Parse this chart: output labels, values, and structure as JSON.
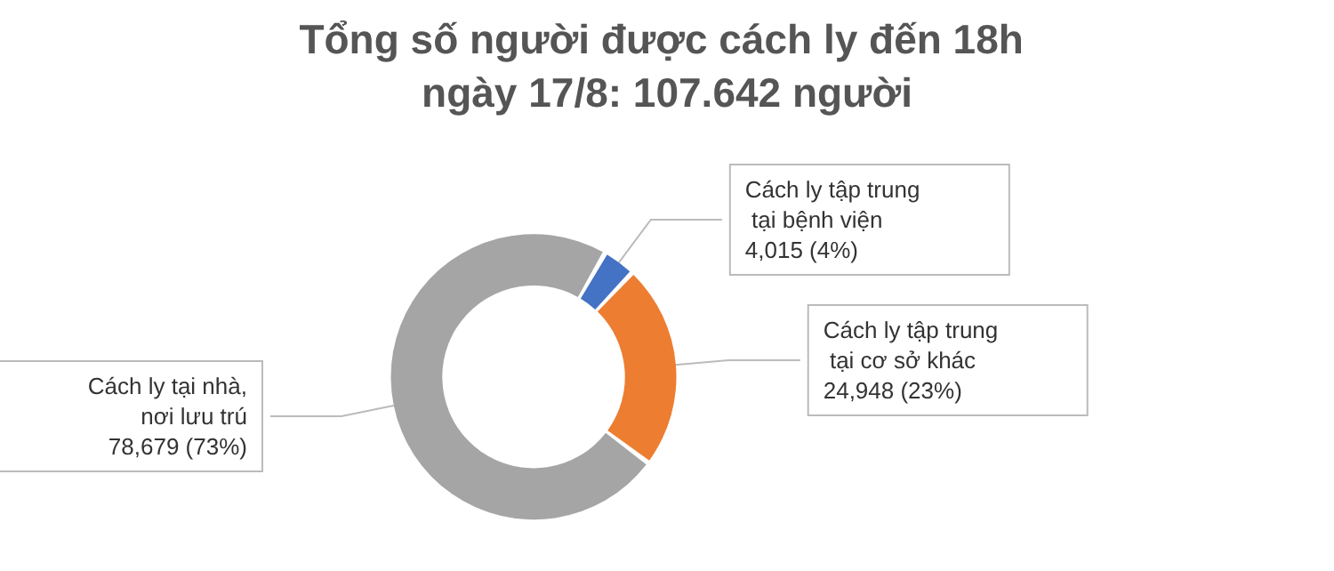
{
  "chart_data": {
    "type": "donut",
    "title": "Tổng số người được cách ly đến 18h ngày 17/8: 107.642 người",
    "categories": [
      "Cách ly tập trung tại bệnh viện",
      "Cách ly tập trung tại cơ sở khác",
      "Cách ly tại nhà, nơi lưu trú"
    ],
    "values": [
      4015,
      24948,
      78679
    ],
    "colors": [
      "#4472c4",
      "#ed7d31",
      "#a5a5a5"
    ],
    "value_labels": [
      "4,015 (4%)",
      "24,948 (23%)",
      "78,679 (73%)"
    ]
  }
}
